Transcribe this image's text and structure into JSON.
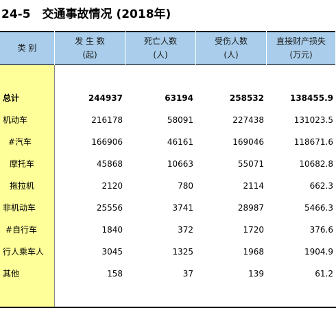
{
  "title": "24-5　交通事故情况 (2018年)",
  "table": {
    "header": [
      [
        "类 别"
      ],
      [
        "发 生 数",
        "(起)"
      ],
      [
        "死亡人数",
        "(人)"
      ],
      [
        "受伤人数",
        "(人)"
      ],
      [
        "直接财产损失",
        "(万元)"
      ]
    ],
    "rows": [
      [
        "总计",
        244937,
        63194,
        258532,
        138455.9
      ],
      [
        "机动车",
        216178,
        58091,
        227438,
        131023.5
      ],
      [
        "#汽车",
        166906,
        46161,
        169046,
        118671.6
      ],
      [
        "摩托车",
        45868,
        10663,
        55071,
        10682.8
      ],
      [
        "拖拉机",
        2120,
        780,
        2114,
        662.3
      ],
      [
        "非机动车",
        25556,
        3741,
        28987,
        5466.3
      ],
      [
        "#自行车",
        1840,
        372,
        1720,
        376.6
      ],
      [
        "行人乘车人",
        3045,
        1325,
        1968,
        1904.9
      ],
      [
        "其他",
        158,
        37,
        139,
        61.2
      ]
    ]
  }
}
